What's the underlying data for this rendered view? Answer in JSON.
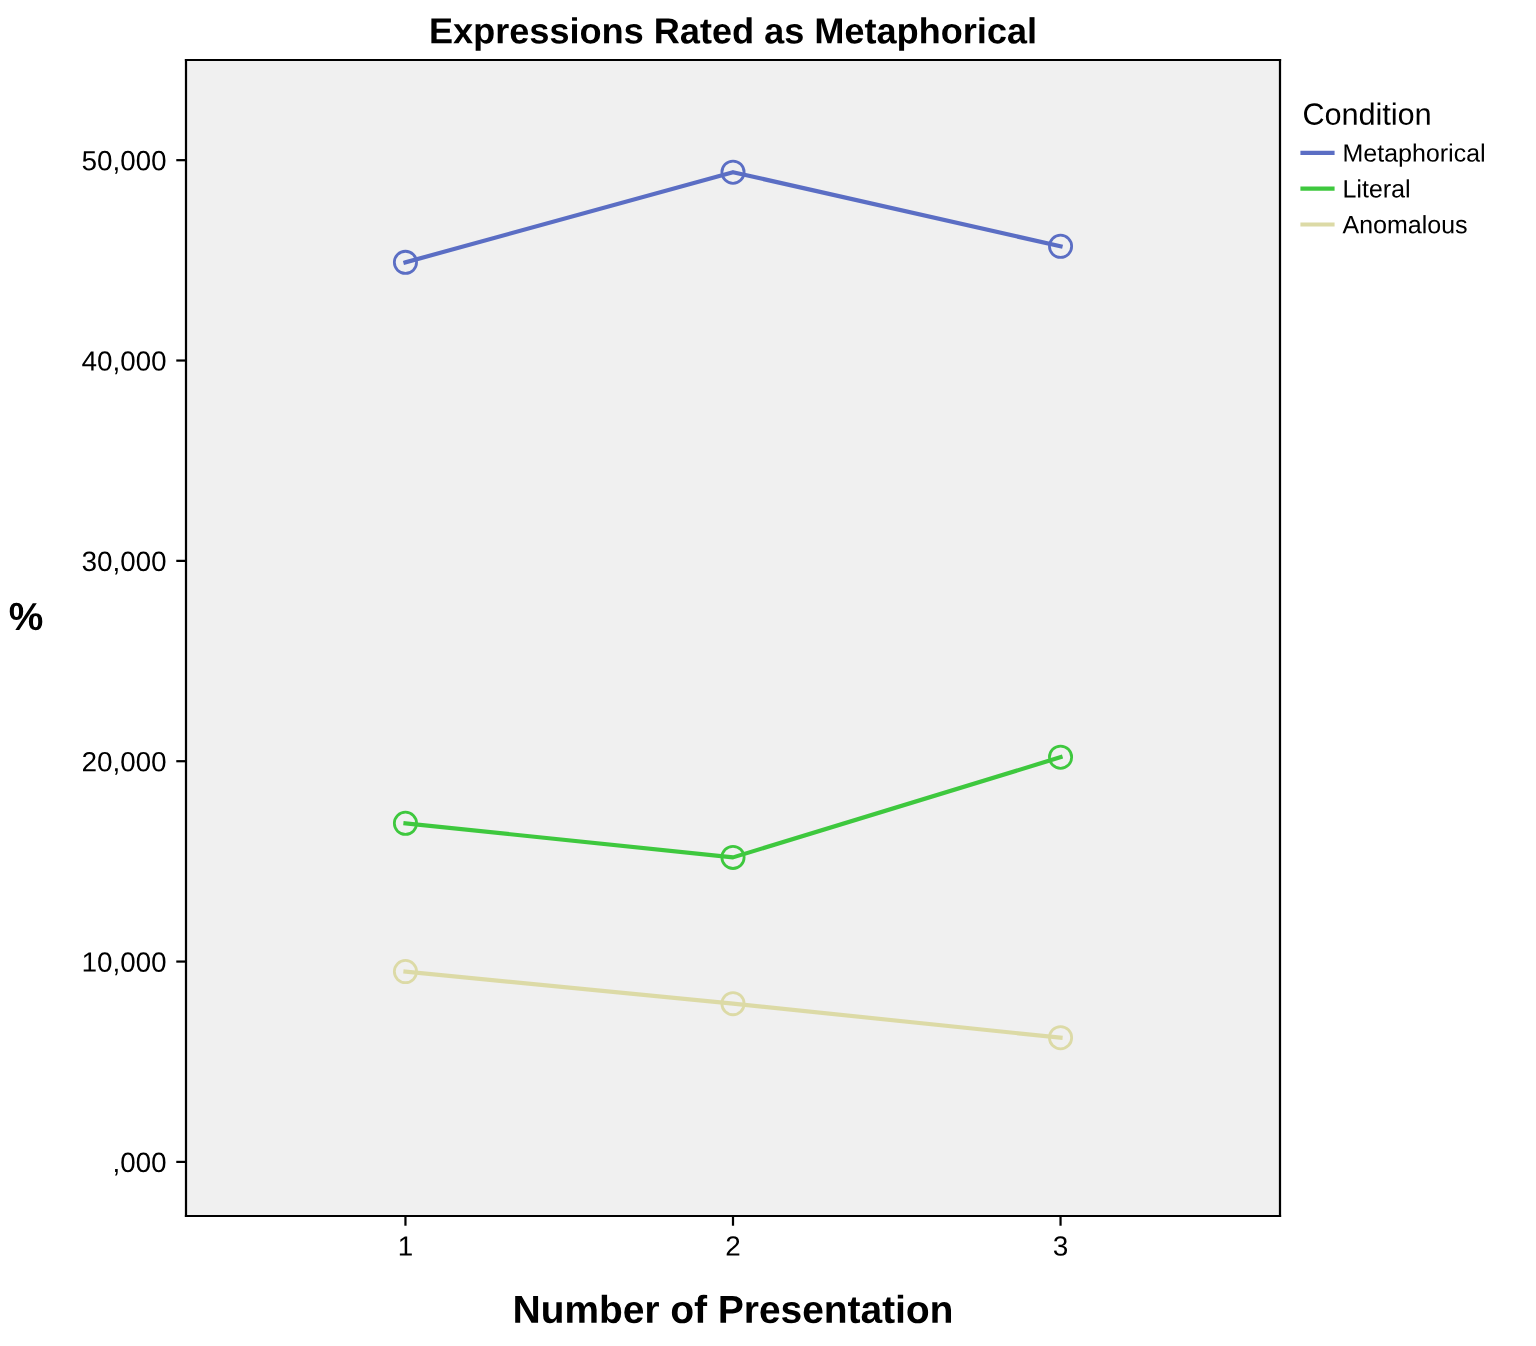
{
  "chart_data": {
    "type": "line",
    "title": "Expressions Rated as Metaphorical",
    "xlabel": "Number of Presentation",
    "ylabel": "%",
    "legend_title": "Condition",
    "x": [
      1,
      2,
      3
    ],
    "series": [
      {
        "name": "Metaphorical",
        "color": "#5b6ec4",
        "values": [
          44900,
          49400,
          45700
        ]
      },
      {
        "name": "Literal",
        "color": "#3ec83e",
        "values": [
          16900,
          15200,
          20200
        ]
      },
      {
        "name": "Anomalous",
        "color": "#dcdaa6",
        "values": [
          9500,
          7900,
          6200
        ]
      }
    ],
    "xlim": [
      0.33,
      3.67
    ],
    "xticks": [
      1,
      2,
      3
    ],
    "ylim": [
      -2700,
      55000
    ],
    "yticks": [
      {
        "value": 0,
        "label": ",000"
      },
      {
        "value": 10000,
        "label": "10,000"
      },
      {
        "value": 20000,
        "label": "20,000"
      },
      {
        "value": 30000,
        "label": "30,000"
      },
      {
        "value": 40000,
        "label": "40,000"
      },
      {
        "value": 50000,
        "label": "50,000"
      }
    ],
    "grid": false,
    "legend": "top right",
    "marker": "circle",
    "line_style": "solid"
  }
}
